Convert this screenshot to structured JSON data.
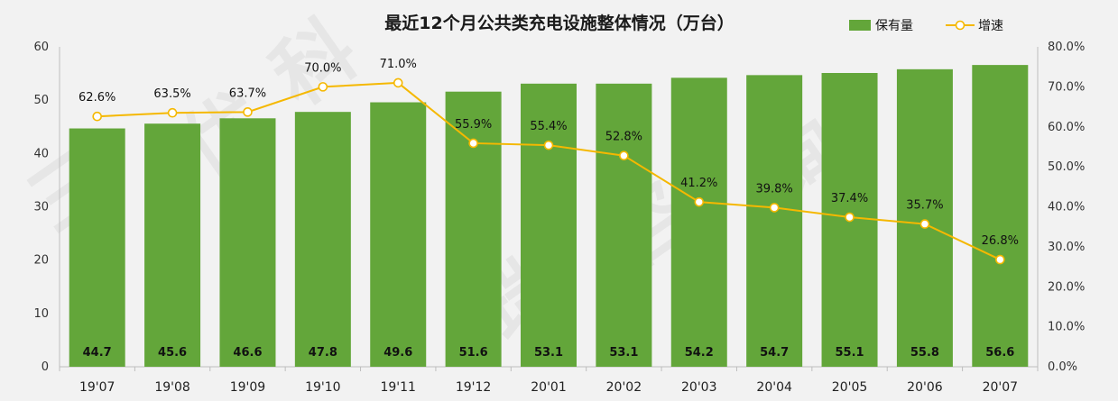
{
  "chart_data": {
    "type": "bar+line",
    "title": "最近12个月公共类充电设施整体情况（万台）",
    "categories": [
      "19'07",
      "19'08",
      "19'09",
      "19'10",
      "19'11",
      "19'12",
      "20'01",
      "20'02",
      "20'03",
      "20'04",
      "20'05",
      "20'06",
      "20'07"
    ],
    "series": [
      {
        "name": "保有量",
        "type": "bar",
        "axis": "left",
        "color": "#63a63a",
        "values": [
          44.7,
          45.6,
          46.6,
          47.8,
          49.6,
          51.6,
          53.1,
          53.1,
          54.2,
          54.7,
          55.1,
          55.8,
          56.6
        ],
        "labels": [
          "44.7",
          "45.6",
          "46.6",
          "47.8",
          "49.6",
          "51.6",
          "53.1",
          "53.1",
          "54.2",
          "54.7",
          "55.1",
          "55.8",
          "56.6"
        ]
      },
      {
        "name": "增速",
        "type": "line",
        "axis": "right",
        "color": "#f5b800",
        "values": [
          62.6,
          63.5,
          63.7,
          70.0,
          71.0,
          55.9,
          55.4,
          52.8,
          41.2,
          39.8,
          37.4,
          35.7,
          26.8
        ],
        "labels": [
          "62.6%",
          "63.5%",
          "63.7%",
          "70.0%",
          "71.0%",
          "55.9%",
          "55.4%",
          "52.8%",
          "41.2%",
          "39.8%",
          "37.4%",
          "35.7%",
          "26.8%"
        ]
      }
    ],
    "left_axis": {
      "min": 0,
      "max": 60,
      "ticks": [
        "0",
        "10",
        "20",
        "30",
        "40",
        "50",
        "60"
      ]
    },
    "right_axis": {
      "min": 0,
      "max": 80,
      "ticks": [
        "0.0%",
        "10.0%",
        "20.0%",
        "30.0%",
        "40.0%",
        "50.0%",
        "60.0%",
        "70.0%",
        "80.0%"
      ]
    },
    "grid": false,
    "legend_position": "top-right",
    "watermark": "三优科瑞咨询"
  }
}
